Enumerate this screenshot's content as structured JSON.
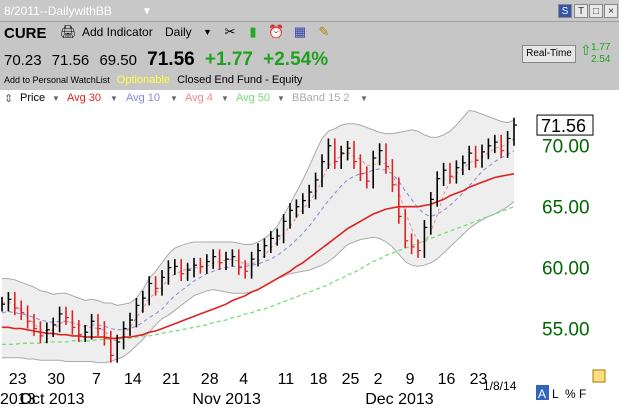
{
  "title_bar": {
    "title": "8/2011--DailywithBB",
    "buttons": [
      "S",
      "T",
      "□",
      "×"
    ]
  },
  "toolbar": {
    "symbol": "CURE",
    "add_indicator": "Add Indicator",
    "interval": "Daily",
    "quote": {
      "last_close": "70.23",
      "high": "71.56",
      "low": "69.50",
      "price": "71.56",
      "change": "+1.77",
      "change_pct": "+2.54%"
    },
    "add_watchlist": "Add to Personal WatchList",
    "optionable": "Optionable",
    "fund_type": "Closed End Fund - Equity",
    "realtime_label": "Real-Time",
    "realtime_change": "1.77",
    "realtime_pct": "2.54"
  },
  "legend": {
    "price": "Price",
    "avg30": "Avg 30",
    "avg10": "Avg 10",
    "avg4": "Avg 4",
    "avg50": "Avg 50",
    "bband": "BBand 15 2"
  },
  "colors": {
    "avg30": "#dd2222",
    "avg10": "#8888dd",
    "avg4": "#ee8888",
    "avg50": "#77dd77",
    "price_up": "#000000",
    "price_down": "#dd2222",
    "axis_label": "#006600"
  },
  "chart_data": {
    "type": "line",
    "price_label": "71.56",
    "y_tick_labels": [
      "70.00",
      "65.00",
      "60.00",
      "55.00"
    ],
    "y_ticks": [
      70,
      65,
      60,
      55
    ],
    "ylim": [
      51.5,
      73
    ],
    "x_tick_labels": [
      "23",
      "30",
      "7",
      "14",
      "21",
      "28",
      "4",
      "11",
      "18",
      "25",
      "2",
      "9",
      "16",
      "23"
    ],
    "month_labels": [
      "2013",
      "Oct 2013",
      "Nov 2013",
      "Dec 2013"
    ],
    "date_label": "1/8/14",
    "price_scale_labels": [
      "A",
      "L",
      "%",
      "F"
    ],
    "closes": [
      56.9,
      57.3,
      56.6,
      56.2,
      55.5,
      54.9,
      54.3,
      54.8,
      55.2,
      56.1,
      55.8,
      55.0,
      54.4,
      54.6,
      55.5,
      54.9,
      54.1,
      52.7,
      53.8,
      54.9,
      55.6,
      56.8,
      57.4,
      58.6,
      58.2,
      59.1,
      59.9,
      60.0,
      59.4,
      59.7,
      60.1,
      60.0,
      60.4,
      60.8,
      60.3,
      60.6,
      60.8,
      59.9,
      59.6,
      60.6,
      61.3,
      61.7,
      62.3,
      62.5,
      63.7,
      64.6,
      64.9,
      65.4,
      66.1,
      67.1,
      68.6,
      69.9,
      68.6,
      69.3,
      69.7,
      68.6,
      67.6,
      67.0,
      68.9,
      69.5,
      68.2,
      66.7,
      64.1,
      62.1,
      61.6,
      61.3,
      63.2,
      65.5,
      67.2,
      67.9,
      67.4,
      68.1,
      68.5,
      69.3,
      68.7,
      69.4,
      69.9,
      70.2,
      69.5,
      70.5,
      71.6
    ],
    "avg4": [
      57.0,
      57.1,
      56.8,
      56.4,
      55.8,
      55.3,
      54.8,
      54.7,
      54.8,
      55.3,
      55.5,
      55.4,
      55.2,
      55.0,
      55.0,
      54.9,
      54.8,
      54.0,
      53.9,
      54.3,
      55.0,
      55.8,
      56.5,
      57.4,
      57.8,
      58.3,
      59.0,
      59.4,
      59.6,
      59.8,
      59.9,
      59.9,
      60.0,
      60.3,
      60.4,
      60.5,
      60.6,
      60.4,
      60.2,
      60.2,
      60.4,
      60.9,
      61.5,
      62.0,
      62.7,
      63.3,
      64.0,
      64.7,
      65.3,
      66.0,
      67.1,
      68.3,
      68.6,
      69.1,
      69.4,
      69.0,
      68.8,
      68.3,
      68.3,
      68.6,
      68.4,
      67.6,
      66.1,
      64.5,
      63.1,
      62.1,
      62.0,
      62.8,
      64.2,
      65.9,
      66.9,
      67.6,
      68.0,
      68.5,
      68.7,
      69.0,
      69.3,
      69.7,
      69.8,
      70.1,
      70.5
    ],
    "avg10": [
      56.2,
      56.3,
      56.2,
      56.1,
      56.0,
      55.8,
      55.6,
      55.5,
      55.4,
      55.5,
      55.5,
      55.4,
      55.2,
      55.1,
      55.2,
      55.2,
      55.1,
      54.9,
      54.8,
      54.8,
      54.9,
      55.1,
      55.4,
      55.8,
      56.1,
      56.5,
      57.1,
      57.6,
      58.0,
      58.4,
      58.8,
      59.1,
      59.4,
      59.6,
      59.8,
      59.9,
      60.0,
      60.0,
      60.0,
      60.1,
      60.2,
      60.4,
      60.6,
      60.9,
      61.3,
      61.7,
      62.2,
      62.7,
      63.3,
      64.0,
      64.7,
      65.4,
      66.0,
      66.6,
      67.1,
      67.4,
      67.6,
      67.7,
      67.9,
      68.0,
      67.9,
      67.6,
      67.0,
      66.2,
      65.5,
      64.8,
      64.3,
      64.1,
      64.3,
      64.6,
      65.0,
      65.5,
      66.0,
      66.6,
      67.2,
      67.8,
      68.2,
      68.6,
      68.9,
      69.2,
      69.5
    ],
    "avg30": [
      55.0,
      55.0,
      54.9,
      54.9,
      54.8,
      54.7,
      54.6,
      54.5,
      54.5,
      54.4,
      54.4,
      54.3,
      54.3,
      54.2,
      54.2,
      54.2,
      54.2,
      54.1,
      54.1,
      54.2,
      54.2,
      54.3,
      54.4,
      54.6,
      54.7,
      54.9,
      55.1,
      55.3,
      55.5,
      55.7,
      55.9,
      56.1,
      56.3,
      56.5,
      56.7,
      56.9,
      57.2,
      57.4,
      57.6,
      57.9,
      58.1,
      58.4,
      58.7,
      59.0,
      59.3,
      59.6,
      60.0,
      60.3,
      60.7,
      61.1,
      61.5,
      61.9,
      62.3,
      62.7,
      63.1,
      63.4,
      63.7,
      64.0,
      64.3,
      64.5,
      64.7,
      64.8,
      64.9,
      64.9,
      64.9,
      64.9,
      65.0,
      65.1,
      65.3,
      65.5,
      65.8,
      66.0,
      66.2,
      66.5,
      66.7,
      66.9,
      67.1,
      67.3,
      67.4,
      67.5,
      67.6
    ],
    "avg50": [
      53.6,
      53.6,
      53.6,
      53.7,
      53.7,
      53.7,
      53.7,
      53.8,
      53.8,
      53.8,
      53.8,
      53.9,
      53.9,
      53.9,
      53.9,
      54.0,
      54.0,
      54.0,
      54.0,
      54.1,
      54.1,
      54.2,
      54.3,
      54.3,
      54.4,
      54.5,
      54.6,
      54.7,
      54.8,
      54.9,
      55.0,
      55.1,
      55.2,
      55.4,
      55.5,
      55.6,
      55.8,
      55.9,
      56.1,
      56.2,
      56.4,
      56.5,
      56.7,
      56.9,
      57.1,
      57.3,
      57.5,
      57.7,
      57.9,
      58.1,
      58.3,
      58.5,
      58.8,
      59.0,
      59.3,
      59.5,
      59.8,
      60.1,
      60.4,
      60.6,
      60.9,
      61.1,
      61.3,
      61.5,
      61.7,
      61.9,
      62.1,
      62.3,
      62.5,
      62.7,
      62.9,
      63.1,
      63.3,
      63.5,
      63.7,
      63.9,
      64.1,
      64.3,
      64.5,
      64.7,
      64.9
    ],
    "bb_upper": [
      59.0,
      59.0,
      58.9,
      58.7,
      58.5,
      58.3,
      58.0,
      57.9,
      57.7,
      57.8,
      57.8,
      57.6,
      57.4,
      57.2,
      57.3,
      57.2,
      57.0,
      57.0,
      56.8,
      56.9,
      57.0,
      57.4,
      58.1,
      59.0,
      59.6,
      60.3,
      61.0,
      61.5,
      61.7,
      61.9,
      62.0,
      62.0,
      62.0,
      62.0,
      62.0,
      62.0,
      62.0,
      61.9,
      61.8,
      61.8,
      62.0,
      62.3,
      62.7,
      63.3,
      64.2,
      65.1,
      66.1,
      67.1,
      68.2,
      69.4,
      70.5,
      71.1,
      71.3,
      71.6,
      71.7,
      71.7,
      71.6,
      71.4,
      71.2,
      71.0,
      70.9,
      70.9,
      71.0,
      71.1,
      71.2,
      71.1,
      70.8,
      70.6,
      70.6,
      70.8,
      71.1,
      71.6,
      72.2,
      72.8,
      72.7,
      72.5,
      72.3,
      72.1,
      71.9,
      71.8,
      72.0
    ],
    "bb_lower": [
      52.5,
      52.5,
      52.5,
      52.5,
      52.4,
      52.4,
      52.3,
      52.3,
      52.3,
      52.3,
      52.2,
      52.2,
      52.2,
      52.2,
      52.2,
      52.1,
      52.1,
      52.2,
      52.4,
      52.6,
      53.0,
      53.5,
      54.0,
      54.6,
      55.2,
      55.7,
      56.0,
      56.4,
      56.8,
      57.2,
      57.6,
      57.8,
      58.0,
      58.1,
      58.0,
      57.9,
      57.8,
      57.8,
      57.8,
      57.9,
      58.1,
      58.4,
      58.7,
      59.0,
      59.2,
      59.4,
      59.5,
      59.6,
      59.7,
      59.9,
      60.1,
      60.4,
      60.8,
      61.3,
      61.8,
      62.0,
      62.2,
      62.3,
      62.4,
      62.3,
      62.0,
      61.6,
      61.0,
      60.4,
      60.1,
      60.0,
      60.1,
      60.3,
      60.6,
      61.1,
      61.6,
      62.1,
      62.6,
      63.1,
      63.5,
      63.8,
      64.1,
      64.3,
      64.6,
      64.9,
      65.3
    ]
  }
}
